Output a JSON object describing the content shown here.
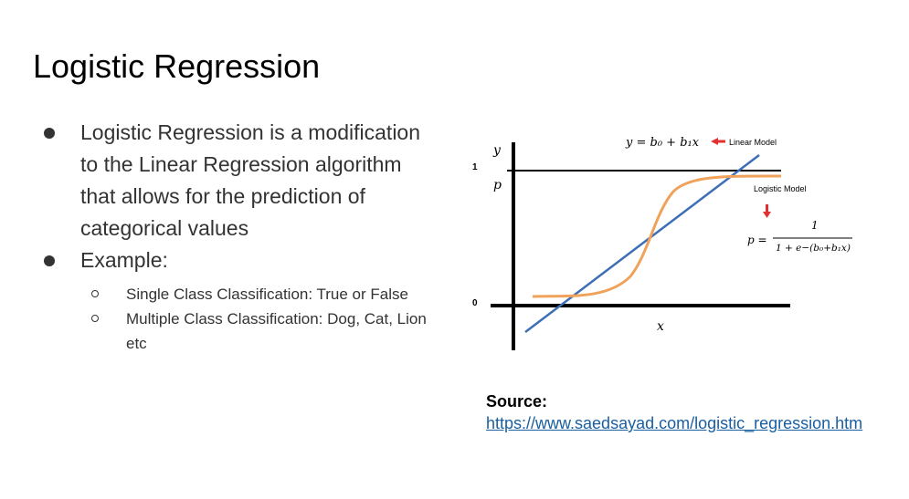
{
  "slide": {
    "title": "Logistic Regression",
    "bullets": [
      {
        "text": "Logistic Regression is a modification to the Linear Regression algorithm that allows for the prediction of categorical values",
        "children": []
      },
      {
        "text": "Example:",
        "children": [
          "Single Class Classification: True or False",
          "Multiple Class Classification: Dog, Cat, Lion etc"
        ]
      }
    ]
  },
  "diagram": {
    "y_axis_label": "y",
    "p_axis_label": "p",
    "x_axis_label": "x",
    "tick_one": "1",
    "tick_zero": "0",
    "linear_equation": "y = b₀ + b₁x",
    "linear_label": "Linear Model",
    "logistic_label": "Logistic Model",
    "logistic_lhs": "p =",
    "logistic_numerator": "1",
    "logistic_denominator": "1 + e−(b₀+b₁x)",
    "linear_color": "#3b6fb6",
    "logistic_color": "#f0a25a",
    "arrow_color": "#e03030"
  },
  "source": {
    "label": "Source:",
    "link_text": "https://www.saedsayad.com/logistic_regression.htm"
  }
}
